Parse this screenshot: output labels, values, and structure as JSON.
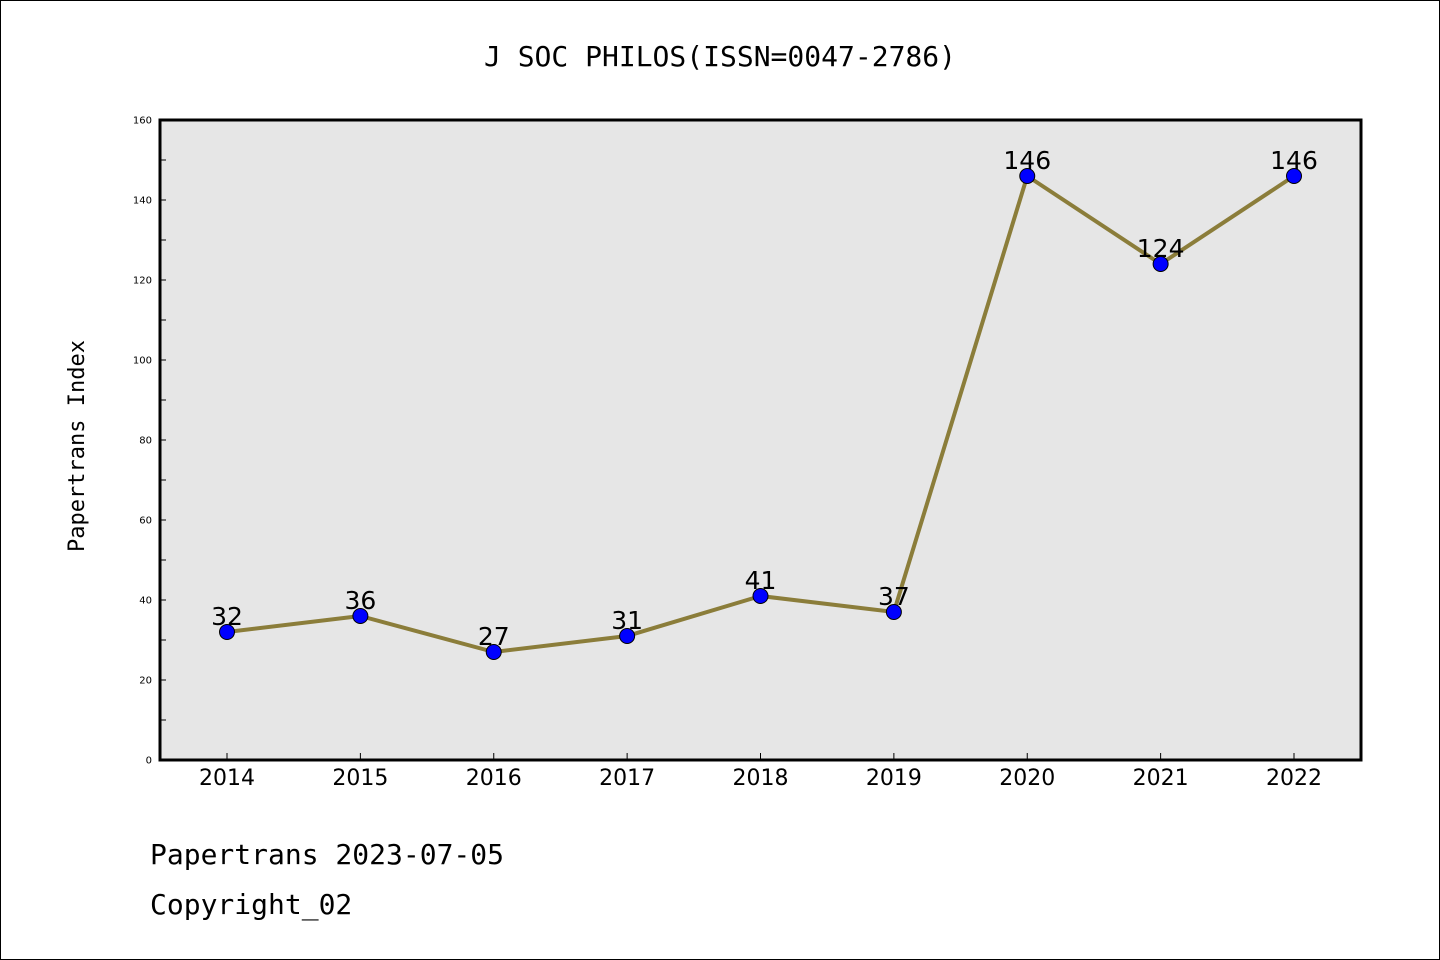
{
  "chart_data": {
    "type": "line",
    "title": "J SOC PHILOS(ISSN=0047-2786)",
    "xlabel": "",
    "ylabel": "Papertrans Index",
    "categories": [
      "2014",
      "2015",
      "2016",
      "2017",
      "2018",
      "2019",
      "2020",
      "2021",
      "2022"
    ],
    "series": [
      {
        "values": [
          32,
          36,
          27,
          31,
          41,
          37,
          146,
          124,
          146
        ]
      }
    ],
    "data_labels": [
      "32",
      "36",
      "27",
      "31",
      "41",
      "37",
      "146",
      "124",
      "146"
    ],
    "ylim": [
      0,
      160
    ],
    "yticks": [
      "0",
      "20",
      "40",
      "60",
      "80",
      "100",
      "120",
      "140",
      "160"
    ],
    "grid": false,
    "colors": {
      "line": "#8b7d3a",
      "marker": "#0000ff",
      "plot_background": "#e6e6e6"
    }
  },
  "footer": {
    "line1": "Papertrans 2023-07-05",
    "line2": "Copyright_02"
  }
}
